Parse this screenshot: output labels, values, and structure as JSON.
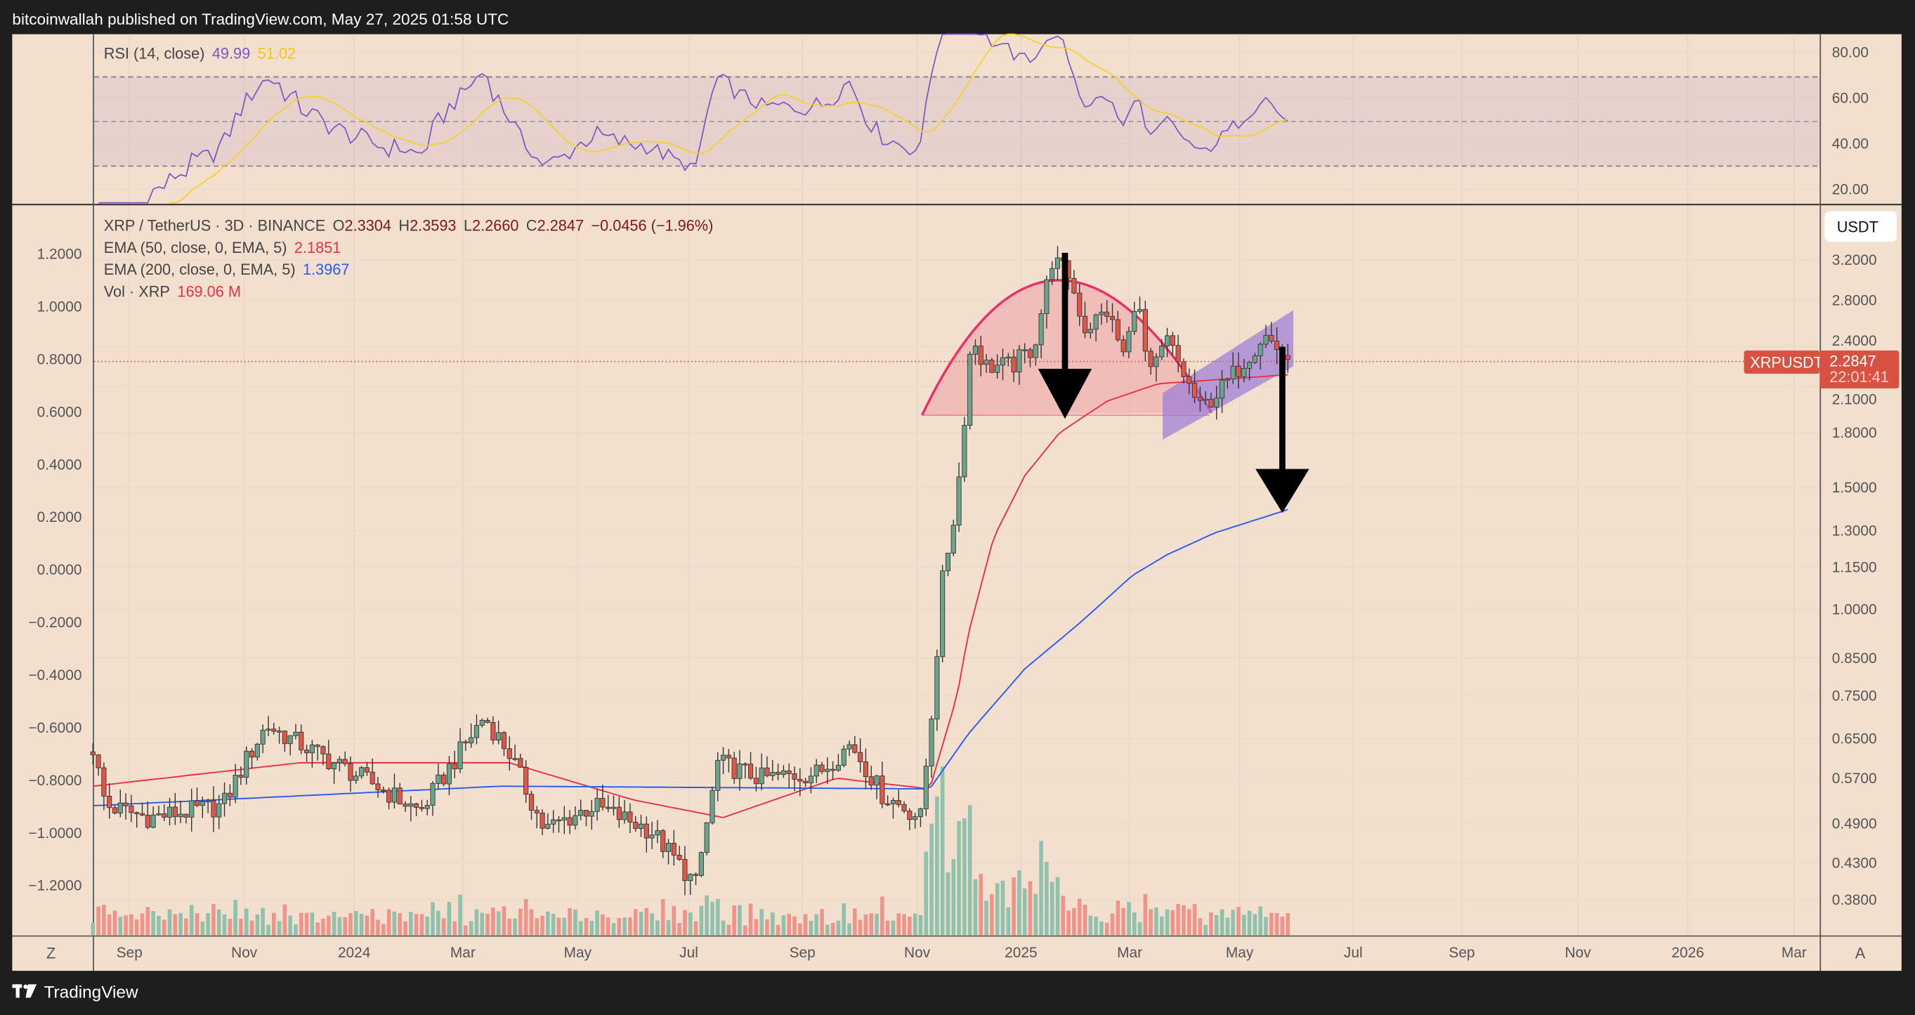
{
  "header": {
    "published": "bitcoinwallah published on TradingView.com, May 27, 2025 01:58 UTC"
  },
  "footer": {
    "brand": "TradingView"
  },
  "colors": {
    "background": "#f2dfcd",
    "up": "#6aa58b",
    "down": "#e0574a",
    "ema50": "#e8323f",
    "ema200": "#2a5bf0",
    "rsi": "#7e57c2",
    "rsi_ma": "#f5d22a",
    "annotation_arc": "#e8306a",
    "channel": "#9a7ad8"
  },
  "chart_data": {
    "type": "candlestick",
    "symbol": "XRP / TetherUS · 3D · BINANCE",
    "ohlc": {
      "o_label": "O",
      "o": "2.3304",
      "h_label": "H",
      "h": "2.3593",
      "l_label": "L",
      "l": "2.2660",
      "c_label": "C",
      "c": "2.2847",
      "change": "−0.0456 (−1.96%)"
    },
    "indicators": {
      "ema50": {
        "label": "EMA (50, close, 0, EMA, 5)",
        "value": "2.1851"
      },
      "ema200": {
        "label": "EMA (200, close, 0, EMA, 5)",
        "value": "1.3967"
      },
      "volume": {
        "label": "Vol · XRP",
        "value": "169.06 M"
      },
      "rsi": {
        "label": "RSI (14, close)",
        "value": "49.99",
        "ma_value": "51.02"
      }
    },
    "price_scale": "log",
    "right_axis_ticks": [
      "3.2000",
      "2.8000",
      "2.4000",
      "2.1000",
      "1.8000",
      "1.5000",
      "1.3000",
      "1.1500",
      "1.0000",
      "0.8500",
      "0.7500",
      "0.6500",
      "0.5700",
      "0.4900",
      "0.4300",
      "0.3800"
    ],
    "left_axis_ticks": [
      "1.2000",
      "1.0000",
      "0.8000",
      "0.6000",
      "0.4000",
      "0.2000",
      "0.0000",
      "−0.2000",
      "−0.4000",
      "−0.6000",
      "−0.8000",
      "−1.0000",
      "−1.2000"
    ],
    "rsi_axis_ticks": [
      "80.00",
      "60.00",
      "40.00",
      "20.00"
    ],
    "time_axis_ticks": [
      "Sep",
      "Nov",
      "2024",
      "Mar",
      "May",
      "Jul",
      "Sep",
      "Nov",
      "2025",
      "Mar",
      "May",
      "Jul",
      "Sep",
      "Nov",
      "2026",
      "Mar"
    ],
    "currency": "USDT",
    "last_price": {
      "symbol": "XRPUSDT",
      "price": "2.2847",
      "countdown": "22:01:41"
    },
    "close_path": [
      [
        "2023-08-10",
        0.63
      ],
      [
        "2023-08-17",
        0.52
      ],
      [
        "2023-09-10",
        0.5
      ],
      [
        "2023-10-20",
        0.52
      ],
      [
        "2023-11-01",
        0.6
      ],
      [
        "2023-11-13",
        0.68
      ],
      [
        "2023-12-10",
        0.62
      ],
      [
        "2024-01-10",
        0.56
      ],
      [
        "2024-02-05",
        0.51
      ],
      [
        "2024-03-11",
        0.7
      ],
      [
        "2024-03-25",
        0.62
      ],
      [
        "2024-04-13",
        0.48
      ],
      [
        "2024-05-10",
        0.52
      ],
      [
        "2024-06-10",
        0.48
      ],
      [
        "2024-07-05",
        0.4
      ],
      [
        "2024-07-17",
        0.6
      ],
      [
        "2024-08-10",
        0.57
      ],
      [
        "2024-09-10",
        0.58
      ],
      [
        "2024-09-28",
        0.64
      ],
      [
        "2024-10-15",
        0.54
      ],
      [
        "2024-11-05",
        0.5
      ],
      [
        "2024-11-12",
        0.75
      ],
      [
        "2024-11-17",
        1.1
      ],
      [
        "2024-11-25",
        1.45
      ],
      [
        "2024-12-03",
        2.5
      ],
      [
        "2024-12-10",
        2.25
      ],
      [
        "2024-12-25",
        2.25
      ],
      [
        "2025-01-06",
        2.4
      ],
      [
        "2025-01-16",
        3.2
      ],
      [
        "2025-01-25",
        3.05
      ],
      [
        "2025-02-03",
        2.55
      ],
      [
        "2025-02-15",
        2.7
      ],
      [
        "2025-02-25",
        2.3
      ],
      [
        "2025-03-03",
        2.9
      ],
      [
        "2025-03-10",
        2.15
      ],
      [
        "2025-03-20",
        2.45
      ],
      [
        "2025-04-07",
        1.95
      ],
      [
        "2025-04-20",
        2.1
      ],
      [
        "2025-05-12",
        2.5
      ],
      [
        "2025-05-26",
        2.2847
      ]
    ],
    "ema50_path": [
      [
        "2023-08-10",
        0.555
      ],
      [
        "2023-12-01",
        0.6
      ],
      [
        "2024-03-25",
        0.6
      ],
      [
        "2024-06-01",
        0.53
      ],
      [
        "2024-07-20",
        0.5
      ],
      [
        "2024-09-20",
        0.57
      ],
      [
        "2024-11-10",
        0.55
      ],
      [
        "2024-11-25",
        0.75
      ],
      [
        "2024-12-01",
        0.92
      ],
      [
        "2024-12-15",
        1.27
      ],
      [
        "2025-01-01",
        1.56
      ],
      [
        "2025-01-20",
        1.8
      ],
      [
        "2025-02-15",
        2.0
      ],
      [
        "2025-03-15",
        2.12
      ],
      [
        "2025-05-26",
        2.1851
      ]
    ],
    "ema200_path": [
      [
        "2023-08-10",
        0.52
      ],
      [
        "2024-03-20",
        0.555
      ],
      [
        "2024-11-10",
        0.55
      ],
      [
        "2024-12-01",
        0.66
      ],
      [
        "2025-01-01",
        0.82
      ],
      [
        "2025-02-01",
        0.96
      ],
      [
        "2025-03-01",
        1.12
      ],
      [
        "2025-03-20",
        1.2
      ],
      [
        "2025-04-15",
        1.29
      ],
      [
        "2025-05-26",
        1.3967
      ]
    ]
  }
}
